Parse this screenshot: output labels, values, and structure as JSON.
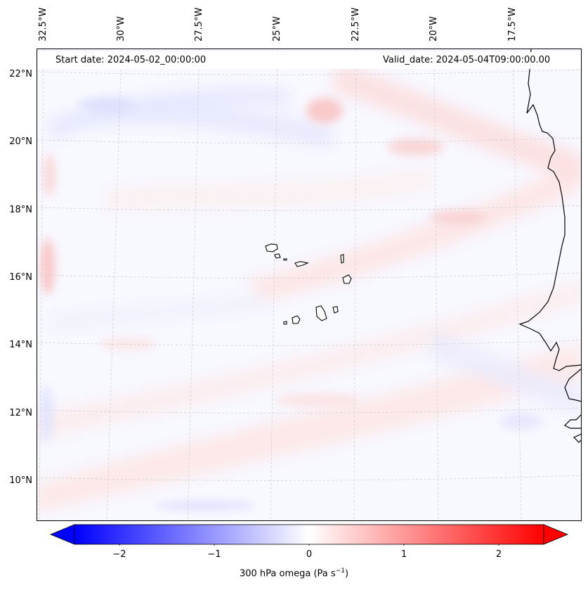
{
  "header": {
    "start_date": "Start date: 2024-05-02_00:00:00",
    "valid_date": "Valid_date: 2024-05-04T09:00:00.00"
  },
  "longitude_labels": [
    "32.5°W",
    "30°W",
    "27.5°W",
    "25°W",
    "22.5°W",
    "20°W",
    "17.5°W"
  ],
  "latitude_labels": [
    "22°N",
    "20°N",
    "18°N",
    "16°N",
    "14°N",
    "12°N",
    "10°N"
  ],
  "colorbar": {
    "label_main": "300 hPa omega (Pa s",
    "label_sup": "−1",
    "label_end": ")",
    "ticks": [
      "−2",
      "−1",
      "0",
      "1",
      "2"
    ],
    "range": [
      -2.6,
      2.6
    ],
    "colors": {
      "negative": "#0000ff",
      "zero": "#ffffff",
      "positive": "#ff0000"
    }
  },
  "map": {
    "coastline_color": "#000000",
    "gridline_color": "#c8c8c8"
  }
}
